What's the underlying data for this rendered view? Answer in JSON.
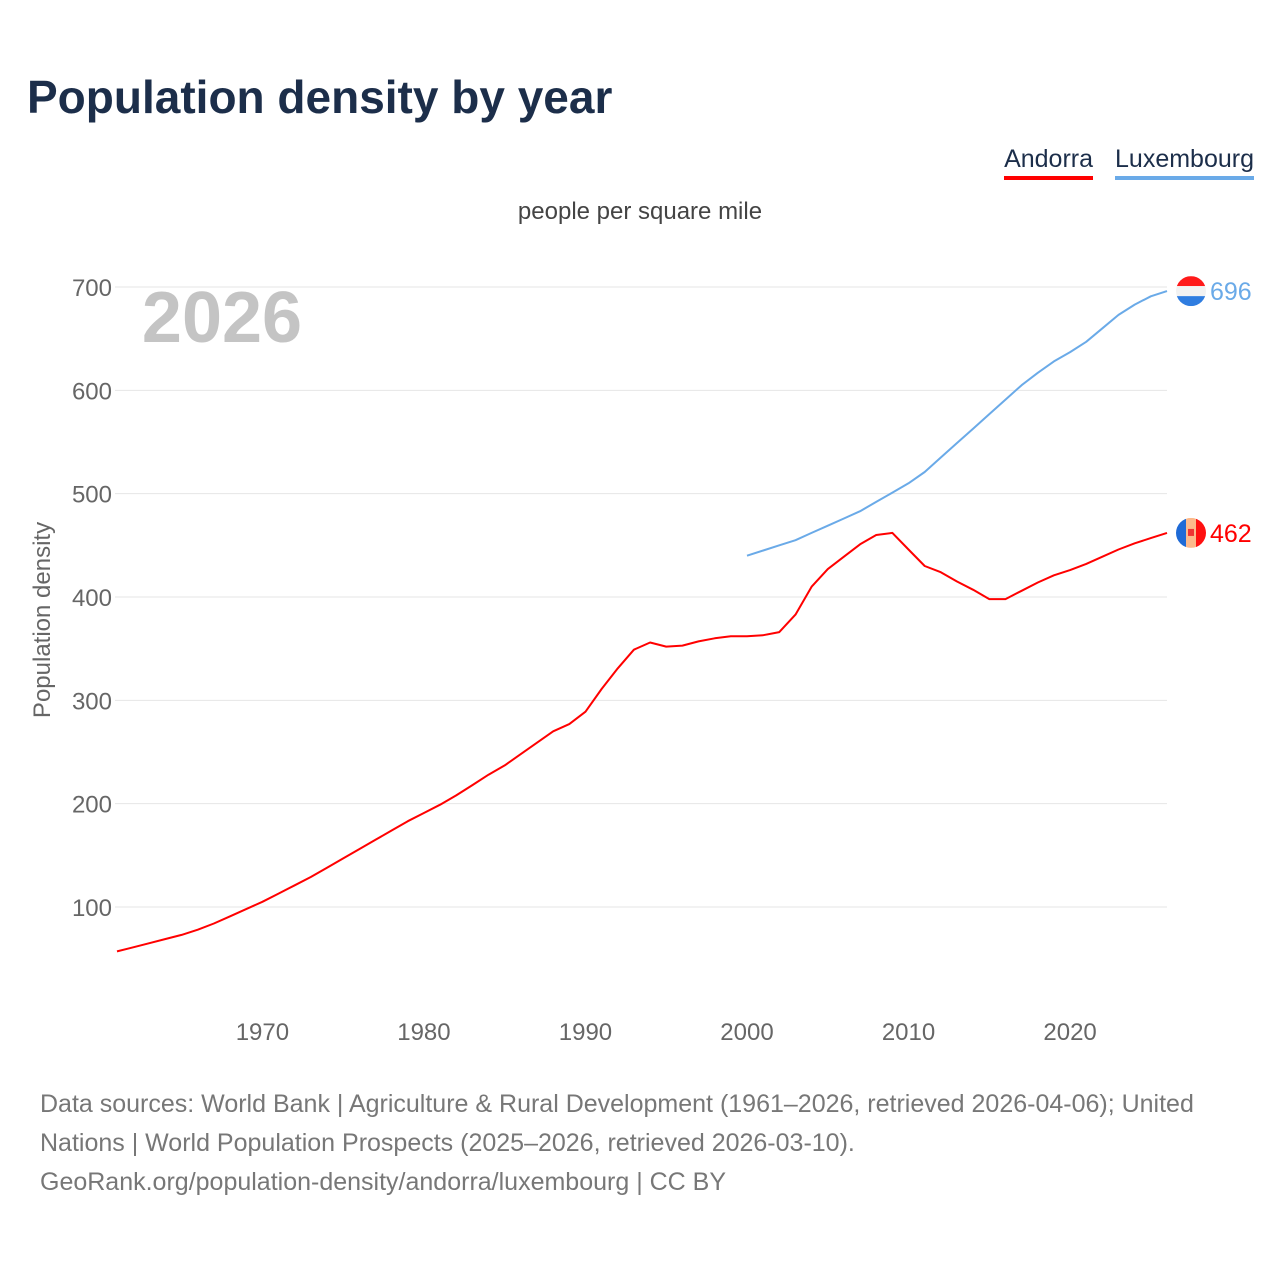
{
  "title": "Population density by year",
  "subtitle": "people per square mile",
  "year_watermark": "2026",
  "footer": {
    "line1": "Data sources: World Bank | Agriculture & Rural Development (1961–2026, retrieved 2026-04-06); United Nations | World Population Prospects (2025–2026, retrieved 2026-03-10).",
    "line2": "GeoRank.org/population-density/andorra/luxembourg | CC BY"
  },
  "chart_data": {
    "type": "line",
    "title": "Population density by year",
    "ylabel": "Population density",
    "xlabel": "",
    "units": "people per square mile",
    "xlim": [
      1961,
      2026
    ],
    "ylim": [
      30,
      700
    ],
    "yticks": [
      100,
      200,
      300,
      400,
      500,
      600,
      700
    ],
    "xticks": [
      1970,
      1980,
      1990,
      2000,
      2010,
      2020
    ],
    "grid": true,
    "legend_position": "top-right",
    "series": [
      {
        "name": "Andorra",
        "color": "#ff0000",
        "end_label": "462",
        "start_year": 1961,
        "values": [
          57,
          61,
          65,
          69,
          73,
          78,
          84,
          91,
          98,
          105,
          113,
          121,
          129,
          138,
          147,
          156,
          165,
          174,
          183,
          191,
          199,
          208,
          218,
          228,
          237,
          248,
          259,
          270,
          277,
          289,
          311,
          331,
          349,
          356,
          352,
          353,
          357,
          360,
          362,
          362,
          363,
          366,
          383,
          410,
          427,
          439,
          451,
          460,
          462,
          446,
          430,
          424,
          415,
          407,
          398,
          398,
          406,
          414,
          421,
          426,
          432,
          439,
          446,
          452,
          457,
          462
        ]
      },
      {
        "name": "Luxembourg",
        "color": "#6aaae8",
        "end_label": "696",
        "start_year": 2000,
        "values": [
          440,
          445,
          450,
          455,
          462,
          469,
          476,
          483,
          492,
          501,
          510,
          521,
          535,
          549,
          563,
          577,
          591,
          605,
          617,
          628,
          637,
          647,
          660,
          673,
          683,
          691,
          696
        ]
      }
    ]
  }
}
